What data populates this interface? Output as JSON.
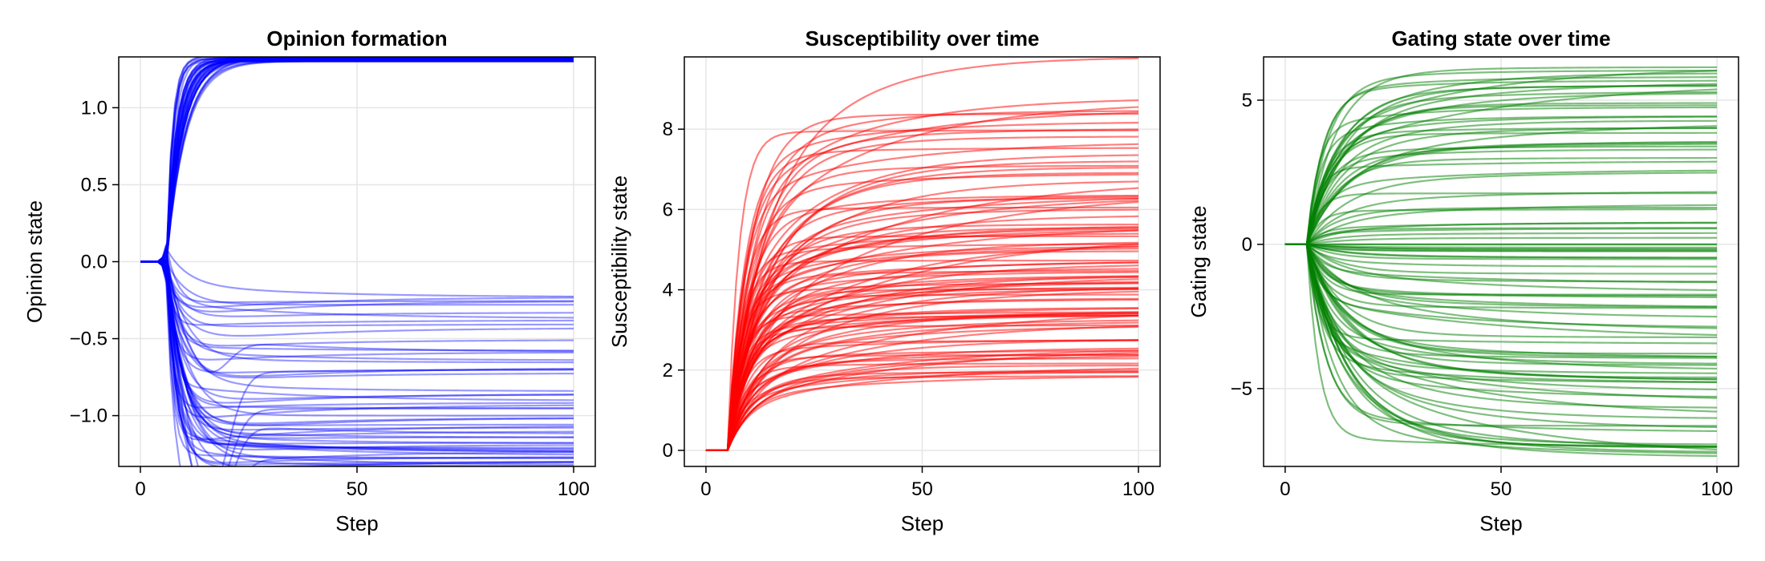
{
  "chart_data": [
    {
      "type": "line",
      "title": "Opinion formation",
      "xlabel": "Step",
      "ylabel": "Opinion state",
      "xlim": [
        -5,
        105
      ],
      "ylim": [
        -1.33,
        1.33
      ],
      "xticks": [
        0,
        50,
        100
      ],
      "xtick_labels": [
        "0",
        "50",
        "100"
      ],
      "yticks": [
        -1.0,
        -0.5,
        0.0,
        0.5,
        1.0
      ],
      "ytick_labels": [
        "−1.0",
        "−0.5",
        "0.0",
        "0.5",
        "1.0"
      ],
      "grid": true,
      "color": "#0000ff",
      "line_opacity": 0.4,
      "n_series": 100,
      "initial_value": 0.0,
      "onset_step": 6,
      "final_values_summary": {
        "upper_cluster": [
          1.3,
          1.33
        ],
        "lower_range": [
          -1.33,
          -0.23
        ]
      },
      "x": [
        0,
        100
      ]
    },
    {
      "type": "line",
      "title": "Susceptibility over time",
      "xlabel": "Step",
      "ylabel": "Susceptibility state",
      "xlim": [
        -5,
        105
      ],
      "ylim": [
        -0.4,
        9.8
      ],
      "xticks": [
        0,
        50,
        100
      ],
      "xtick_labels": [
        "0",
        "50",
        "100"
      ],
      "yticks": [
        0,
        2,
        4,
        6,
        8
      ],
      "ytick_labels": [
        "0",
        "2",
        "4",
        "6",
        "8"
      ],
      "grid": true,
      "color": "#ff0000",
      "line_opacity": 0.5,
      "n_series": 100,
      "initial_value": 0.0,
      "onset_step": 5,
      "final_values_summary": {
        "range": [
          1.8,
          9.8
        ]
      },
      "x": [
        0,
        100
      ]
    },
    {
      "type": "line",
      "title": "Gating state over time",
      "xlabel": "Step",
      "ylabel": "Gating state",
      "xlim": [
        -5,
        105
      ],
      "ylim": [
        -7.7,
        6.5
      ],
      "xticks": [
        0,
        50,
        100
      ],
      "xtick_labels": [
        "0",
        "50",
        "100"
      ],
      "yticks": [
        -5,
        0,
        5
      ],
      "ytick_labels": [
        "−5",
        "0",
        "5"
      ],
      "grid": true,
      "color": "#008000",
      "line_opacity": 0.5,
      "n_series": 100,
      "initial_value": 0.0,
      "onset_step": 5,
      "final_values_summary": {
        "range": [
          -7.4,
          6.3
        ]
      },
      "x": [
        0,
        100
      ]
    }
  ]
}
